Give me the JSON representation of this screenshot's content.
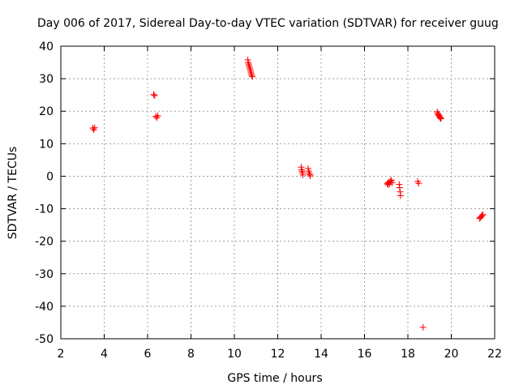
{
  "chart_data": {
    "type": "scatter",
    "title": "Day 006 of 2017, Sidereal Day-to-day VTEC variation (SDTVAR) for receiver guug",
    "xlabel": "GPS time / hours",
    "ylabel": "SDTVAR / TECUs",
    "xlim": [
      2,
      22
    ],
    "ylim": [
      -50,
      40
    ],
    "xticks": [
      "2",
      "4",
      "6",
      "8",
      "10",
      "12",
      "14",
      "16",
      "18",
      "20",
      "22"
    ],
    "yticks": [
      "40",
      "30",
      "20",
      "10",
      "0",
      "-10",
      "-20",
      "-30",
      "-40",
      "-50"
    ],
    "grid": true,
    "marker": "+",
    "color": "#ff0000",
    "series": [
      {
        "name": "SDTVAR",
        "x": [
          3.48,
          3.52,
          3.56,
          6.28,
          6.33,
          6.38,
          6.42,
          6.47,
          10.62,
          10.64,
          10.66,
          10.68,
          10.7,
          10.72,
          10.74,
          10.76,
          10.78,
          10.8,
          10.83,
          13.08,
          13.1,
          13.12,
          13.14,
          13.16,
          13.4,
          13.42,
          13.45,
          13.48,
          13.5,
          17.05,
          17.08,
          17.1,
          17.13,
          17.16,
          17.2,
          17.24,
          17.27,
          17.6,
          17.62,
          17.64,
          17.66,
          18.45,
          18.5,
          18.7,
          19.35,
          19.38,
          19.4,
          19.43,
          19.45,
          19.48,
          19.5,
          19.53,
          21.3,
          21.34,
          21.38,
          21.42,
          21.46
        ],
        "y": [
          14.8,
          14.3,
          14.9,
          25.1,
          24.8,
          18.4,
          18.0,
          18.6,
          35.8,
          35.0,
          34.5,
          34.0,
          33.5,
          33.0,
          32.5,
          32.0,
          31.5,
          31.0,
          30.6,
          2.8,
          2.0,
          1.5,
          1.0,
          0.4,
          2.4,
          1.6,
          1.0,
          0.5,
          0.1,
          -2.3,
          -2.6,
          -2.0,
          -1.8,
          -2.4,
          -1.5,
          -1.2,
          -2.0,
          -2.5,
          -3.5,
          -4.8,
          -6.0,
          -1.6,
          -2.2,
          -46.5,
          19.8,
          19.3,
          19.0,
          18.7,
          18.4,
          18.1,
          17.9,
          17.7,
          -13.0,
          -12.7,
          -12.4,
          -12.1,
          -11.8
        ]
      }
    ]
  }
}
